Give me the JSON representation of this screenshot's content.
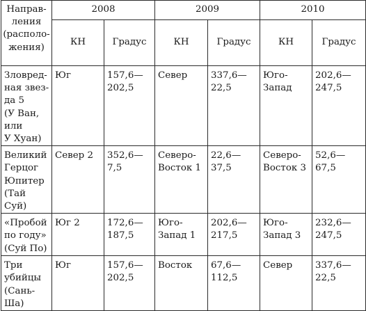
{
  "header": {
    "direction_label": [
      "Направ-",
      "ления",
      "(располо-",
      "жения)"
    ],
    "years": [
      "2008",
      "2009",
      "2010"
    ],
    "kn_label": "КН",
    "degree_label": "Градус"
  },
  "rows": [
    {
      "name": [
        "Зловред-",
        "ная звез-",
        "да 5",
        "(У Ван,",
        "или",
        "У Хуан)"
      ],
      "cols": [
        {
          "kn": [
            "Юг"
          ],
          "deg": [
            "157,6—",
            "202,5"
          ]
        },
        {
          "kn": [
            "Север"
          ],
          "deg": [
            "337,6—",
            "22,5"
          ]
        },
        {
          "kn": [
            "Юго-",
            "Запад"
          ],
          "deg": [
            "202,6—",
            "247,5"
          ]
        }
      ]
    },
    {
      "name": [
        "Великий",
        "Герцог",
        "Юпитер",
        "(Тай",
        "Суй)"
      ],
      "cols": [
        {
          "kn": [
            "Север 2"
          ],
          "deg": [
            "352,6—",
            "7,5"
          ]
        },
        {
          "kn": [
            "Северо-",
            "Восток 1"
          ],
          "deg": [
            "22,6—",
            "37,5"
          ]
        },
        {
          "kn": [
            "Северо-",
            "Восток 3"
          ],
          "deg": [
            "52,6—",
            "67,5"
          ]
        }
      ]
    },
    {
      "name": [
        "«Пробой",
        "по году»",
        "(Суй По)"
      ],
      "cols": [
        {
          "kn": [
            "Юг 2"
          ],
          "deg": [
            "172,6—",
            "187,5"
          ]
        },
        {
          "kn": [
            "Юго-",
            "Запад 1"
          ],
          "deg": [
            "202,6—",
            "217,5"
          ]
        },
        {
          "kn": [
            "Юго-",
            "Запад 3"
          ],
          "deg": [
            "232,6—",
            "247,5"
          ]
        }
      ]
    },
    {
      "name": [
        "Три",
        "убийцы",
        "(Сань-",
        "Ша)"
      ],
      "cols": [
        {
          "kn": [
            "Юг"
          ],
          "deg": [
            "157,6—",
            "202,5"
          ]
        },
        {
          "kn": [
            "Восток"
          ],
          "deg": [
            "67,6—",
            "112,5"
          ]
        },
        {
          "kn": [
            "Север"
          ],
          "deg": [
            "337,6—",
            "22,5"
          ]
        }
      ]
    }
  ]
}
